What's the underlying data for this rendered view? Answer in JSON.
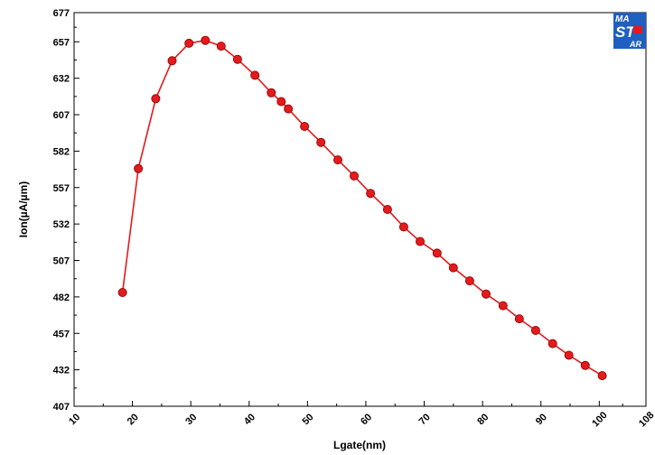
{
  "chart_data": {
    "type": "line",
    "title": "",
    "xlabel": "Lgate(nm)",
    "ylabel": "Ion(µA/µm)",
    "xlim": [
      10,
      108
    ],
    "ylim": [
      407,
      677
    ],
    "xticks": [
      10,
      20,
      30,
      40,
      50,
      60,
      70,
      80,
      90,
      100,
      108
    ],
    "yticks": [
      407,
      432,
      457,
      482,
      507,
      532,
      557,
      582,
      607,
      632,
      657,
      677
    ],
    "grid": false,
    "legend": "none",
    "series": [
      {
        "color": "#e41a1c",
        "marker": "circle",
        "x": [
          18.3,
          21.0,
          24.0,
          26.8,
          29.7,
          32.5,
          35.2,
          38.0,
          41.0,
          43.8,
          45.5,
          46.7,
          49.5,
          52.3,
          55.2,
          58.0,
          60.8,
          63.7,
          66.5,
          69.3,
          72.2,
          75.0,
          77.8,
          80.6,
          83.5,
          86.3,
          89.1,
          92.0,
          94.8,
          97.6,
          100.5
        ],
        "y": [
          485,
          570,
          618,
          644,
          656,
          658,
          654,
          645,
          634,
          622,
          616,
          611,
          599,
          588,
          576,
          565,
          553,
          542,
          530,
          520,
          512,
          502,
          493,
          484,
          476,
          467,
          459,
          450,
          442,
          435,
          428
        ]
      }
    ]
  },
  "logo": {
    "text_top": "MA",
    "text_mid": "ST",
    "text_bottom": "AR",
    "bg_color": "#1f5fbf",
    "accent_color": "#e41a1c"
  }
}
